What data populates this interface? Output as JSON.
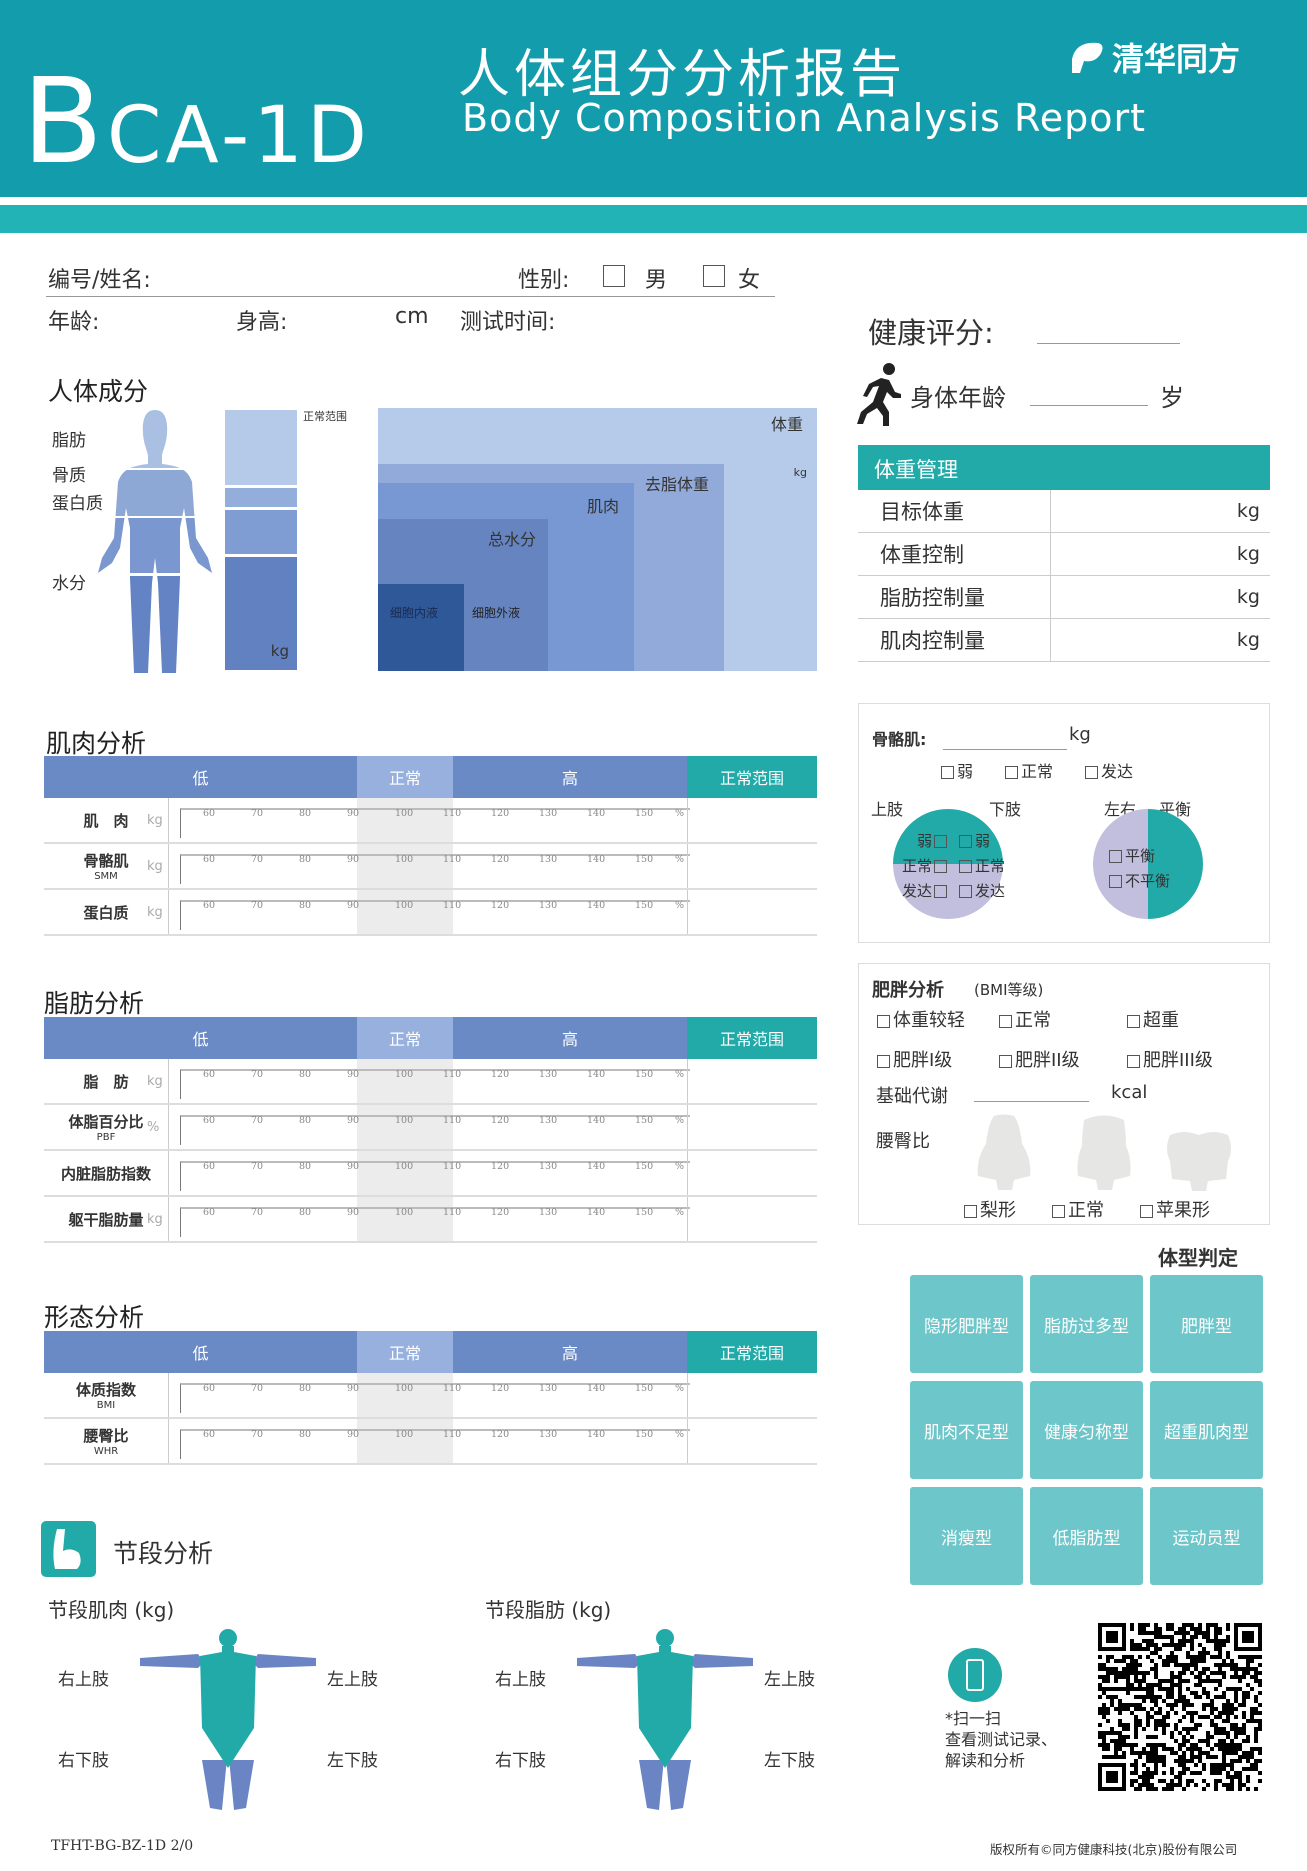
{
  "header": {
    "model_big": "B",
    "model_rest": "CA-1D",
    "title_cn": "人体组分分析报告",
    "title_en": "Body Composition Analysis Report",
    "brand": "清华同方"
  },
  "info": {
    "id_name": "编号/姓名:",
    "gender": "性别:",
    "male": "男",
    "female": "女",
    "age": "年龄:",
    "height": "身高:",
    "height_unit": "cm",
    "test_time": "测试时间:"
  },
  "health": {
    "score_label": "健康评分:",
    "body_age_label": "身体年龄",
    "age_unit": "岁"
  },
  "weight_mgmt": {
    "title": "体重管理",
    "rows": [
      {
        "name": "目标体重",
        "unit": "kg"
      },
      {
        "name": "体重控制",
        "unit": "kg"
      },
      {
        "name": "脂肪控制量",
        "unit": "kg"
      },
      {
        "name": "肌肉控制量",
        "unit": "kg"
      }
    ]
  },
  "composition": {
    "title": "人体成分",
    "labels": [
      "脂肪",
      "骨质",
      "蛋白质",
      "水分"
    ],
    "range_label": "正常范围",
    "unit": "kg",
    "nested": [
      "体重",
      "去脂体重",
      "肌肉",
      "总水分",
      "细胞内液",
      "细胞外液"
    ],
    "weight_unit": "kg"
  },
  "scale_header": {
    "low": "低",
    "normal": "正常",
    "high": "高",
    "range": "正常范围"
  },
  "ticks": [
    "60",
    "70",
    "80",
    "90",
    "100",
    "110",
    "120",
    "130",
    "140",
    "150"
  ],
  "tick_unit": "%",
  "muscle": {
    "title": "肌肉分析",
    "rows": [
      {
        "label": "肌　肉",
        "sub": "",
        "unit": "kg"
      },
      {
        "label": "骨骼肌",
        "sub": "SMM",
        "unit": "kg"
      },
      {
        "label": "蛋白质",
        "sub": "",
        "unit": "kg"
      }
    ]
  },
  "fat": {
    "title": "脂肪分析",
    "rows": [
      {
        "label": "脂　肪",
        "sub": "",
        "unit": "kg"
      },
      {
        "label": "体脂百分比",
        "sub": "PBF",
        "unit": "%"
      },
      {
        "label": "内脏脂肪指数",
        "sub": "",
        "unit": ""
      },
      {
        "label": "躯干脂肪量",
        "sub": "",
        "unit": "kg"
      }
    ]
  },
  "morph": {
    "title": "形态分析",
    "rows": [
      {
        "label": "体质指数",
        "sub": "BMI",
        "unit": ""
      },
      {
        "label": "腰臀比",
        "sub": "WHR",
        "unit": ""
      }
    ]
  },
  "skeletal": {
    "label": "骨骼肌:",
    "unit": "kg",
    "opts": [
      "弱",
      "正常",
      "发达"
    ],
    "upper": "上肢",
    "lower": "下肢",
    "lr": "左右",
    "balance": "平衡",
    "upper_opts": [
      "弱",
      "正常",
      "发达"
    ],
    "lower_opts": [
      "弱",
      "正常",
      "发达"
    ],
    "bal_opts": [
      "平衡",
      "不平衡"
    ]
  },
  "obesity": {
    "title": "肥胖分析",
    "sub": "(BMI等级)",
    "opts": [
      "体重较轻",
      "正常",
      "超重",
      "肥胖I级",
      "肥胖II级",
      "肥胖III级"
    ],
    "bmr": "基础代谢",
    "bmr_unit": "kcal",
    "whr": "腰臀比",
    "shapes": [
      "梨形",
      "正常",
      "苹果形"
    ]
  },
  "body_type": {
    "title": "体型判定",
    "cells": [
      "隐形肥胖型",
      "脂肪过多型",
      "肥胖型",
      "肌肉不足型",
      "健康匀称型",
      "超重肌肉型",
      "消瘦型",
      "低脂肪型",
      "运动员型"
    ]
  },
  "segment": {
    "title": "节段分析",
    "muscle": "节段肌肉 (kg)",
    "fat": "节段脂肪 (kg)",
    "ru": "右上肢",
    "lu": "左上肢",
    "rl": "右下肢",
    "ll": "左下肢"
  },
  "scan": {
    "line1": "*扫一扫",
    "line2": "查看测试记录、",
    "line3": "解读和分析"
  },
  "footer": {
    "code": "TFHT-BG-BZ-1D 2/0",
    "copyright": "版权所有©同方健康科技(北京)股份有限公司"
  },
  "colors": {
    "teal": "#139cab",
    "teal_light": "#22b3b6",
    "blue": "#6a8ac6",
    "type_cell": "#6dc6c9",
    "pie_purple": "#c2bfde"
  }
}
